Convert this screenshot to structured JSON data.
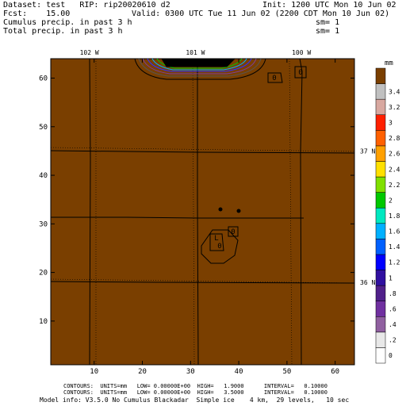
{
  "header": {
    "dataset_line": "Dataset: test   RIP: rip20020610 d2",
    "init_line": "Init: 1200 UTC Mon 10 Jun 02",
    "fcst_line": "Fcst:    15.00",
    "valid_line": "Valid: 0300 UTC Tue 11 Jun 02 (2200 CDT Mon 10 Jun 02)",
    "field1_line": "Cumulus precip. in past 3 h",
    "sm1_line": "sm= 1",
    "field2_line": "Total precip. in past 3 h",
    "sm2_line": "sm= 1"
  },
  "map": {
    "fill_color": "#7a3f00",
    "x_ticks": [
      10,
      20,
      30,
      40,
      50,
      60
    ],
    "y_ticks": [
      10,
      20,
      30,
      40,
      50,
      60
    ],
    "x_range": [
      1,
      64
    ],
    "y_range": [
      1,
      64
    ],
    "lon_labels": [
      {
        "text": "102 W",
        "x": 9
      },
      {
        "text": "101 W",
        "x": 31
      },
      {
        "text": "100 W",
        "x": 53
      }
    ],
    "lat_labels": [
      {
        "text": "37 N",
        "y": 45
      },
      {
        "text": "36 N",
        "y": 18
      }
    ],
    "low_label": "L",
    "low_value": "0",
    "contour_labels": [
      "0",
      "0",
      "0"
    ]
  },
  "colorbar": {
    "unit": "mm",
    "levels": [
      "0",
      ".2",
      ".4",
      ".6",
      ".8",
      "1",
      "1.2",
      "1.4",
      "1.6",
      "1.8",
      "2",
      "2.2",
      "2.4",
      "2.6",
      "2.8",
      "3",
      "3.2",
      "3.4"
    ],
    "colors": [
      "#ffffff",
      "#e8e8e8",
      "#9060a0",
      "#7030a0",
      "#50208a",
      "#3010a0",
      "#0000ff",
      "#0060ff",
      "#00b0ff",
      "#00e8c0",
      "#00c800",
      "#80e000",
      "#ffe000",
      "#ffa000",
      "#ff6000",
      "#ff2000",
      "#d8a8a0",
      "#c0c0c0",
      "#7a3f00"
    ]
  },
  "footer": {
    "line1": "CONTOURS:  UNITS=mm   LOW= 0.00000E+00  HIGH=   1.9000      INTERVAL=   0.10000",
    "line2": "CONTOURS:  UNITS=mm   LOW= 0.00000E+00  HIGH=   3.5000      INTERVAL=   0.10000",
    "line3": "Model info: V3.5.0 No Cumulus Blackadar  Simple ice    4 km,  29 levels,   10 sec"
  }
}
